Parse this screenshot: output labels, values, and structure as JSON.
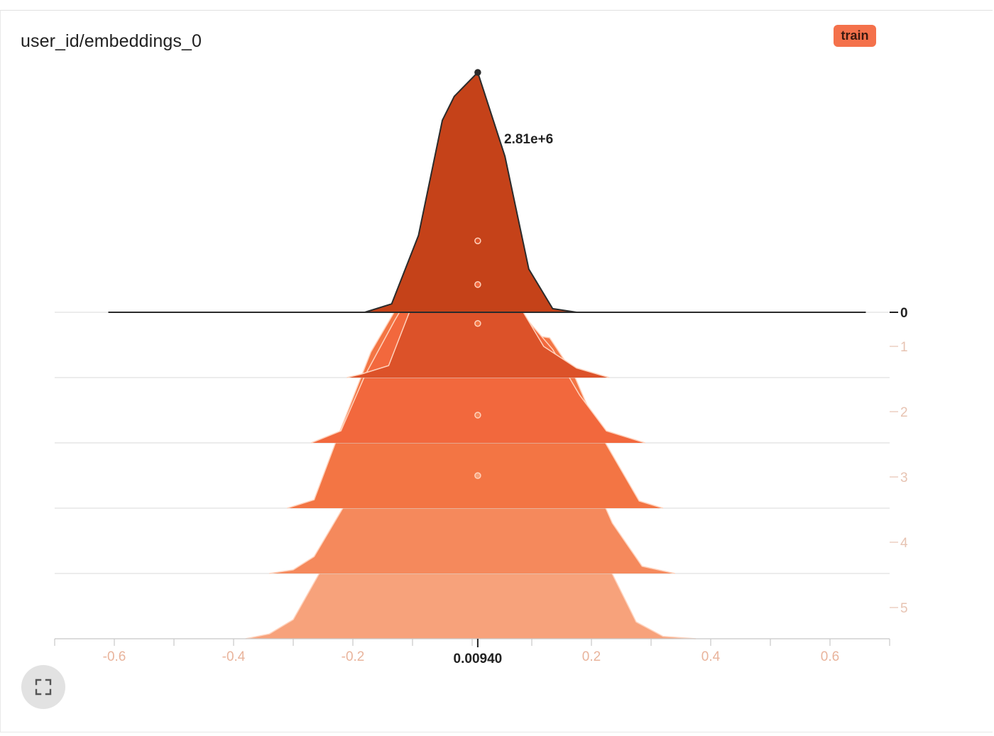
{
  "card": {
    "title": "user_id/embeddings_0",
    "run_label": "train",
    "run_color": "#f4714b",
    "fullscreen_icon": "fullscreen-icon"
  },
  "chart_data": {
    "type": "area",
    "title": "user_id/embeddings_0",
    "xlabel": "",
    "ylabel": "",
    "xlim": [
      -0.7,
      0.7
    ],
    "x_ticks": [
      -0.6,
      -0.4,
      -0.2,
      0.2,
      0.4,
      0.6
    ],
    "x_tick_labels": [
      "-0.6",
      "-0.4",
      "-0.2",
      "0.2",
      "0.4",
      "0.6"
    ],
    "step_ticks": [
      0,
      1,
      2,
      3,
      4,
      5
    ],
    "step_tick_labels": [
      "0",
      "1",
      "2",
      "3",
      "4",
      "5"
    ],
    "hover": {
      "x": 0.0094,
      "x_label": "0.00940",
      "step": 0,
      "value": 2810000,
      "value_label": "2.81e+6"
    },
    "series": [
      {
        "step": 0,
        "color": "#c54219",
        "points": [
          [
            -0.61,
            0
          ],
          [
            -0.18,
            0
          ],
          [
            -0.135,
            0.035
          ],
          [
            -0.09,
            0.32
          ],
          [
            -0.05,
            0.8
          ],
          [
            -0.03,
            0.9
          ],
          [
            0.0094,
            1.0
          ],
          [
            0.055,
            0.65
          ],
          [
            0.095,
            0.18
          ],
          [
            0.135,
            0.015
          ],
          [
            0.175,
            0
          ],
          [
            0.66,
            0
          ]
        ]
      },
      {
        "step": 1,
        "color": "#dc5229",
        "points": [
          [
            -0.21,
            0
          ],
          [
            -0.185,
            0.015
          ],
          [
            -0.14,
            0.05
          ],
          [
            -0.09,
            0.37
          ],
          [
            -0.07,
            0.51
          ],
          [
            -0.03,
            0.58
          ],
          [
            0.0094,
            0.57
          ],
          [
            0.06,
            0.38
          ],
          [
            0.12,
            0.13
          ],
          [
            0.175,
            0.04
          ],
          [
            0.23,
            0
          ]
        ]
      },
      {
        "step": 2,
        "color": "#f2683d",
        "points": [
          [
            -0.27,
            0
          ],
          [
            -0.22,
            0.05
          ],
          [
            -0.18,
            0.28
          ],
          [
            -0.13,
            0.51
          ],
          [
            -0.09,
            0.68
          ],
          [
            -0.045,
            0.71
          ],
          [
            0.0094,
            0.66
          ],
          [
            0.09,
            0.52
          ],
          [
            0.135,
            0.39
          ],
          [
            0.18,
            0.2
          ],
          [
            0.225,
            0.05
          ],
          [
            0.29,
            0
          ]
        ]
      },
      {
        "step": 3,
        "color": "#f37544",
        "points": [
          [
            -0.31,
            0
          ],
          [
            -0.265,
            0.035
          ],
          [
            -0.225,
            0.3
          ],
          [
            -0.17,
            0.65
          ],
          [
            -0.13,
            0.82
          ],
          [
            -0.085,
            0.86
          ],
          [
            0.0094,
            0.77
          ],
          [
            0.05,
            0.74
          ],
          [
            0.13,
            0.71
          ],
          [
            0.17,
            0.56
          ],
          [
            0.21,
            0.33
          ],
          [
            0.28,
            0.03
          ],
          [
            0.32,
            0
          ]
        ]
      },
      {
        "step": 4,
        "color": "#f5895c",
        "points": [
          [
            -0.34,
            0
          ],
          [
            -0.3,
            0.015
          ],
          [
            -0.265,
            0.07
          ],
          [
            -0.215,
            0.28
          ],
          [
            -0.17,
            0.58
          ],
          [
            -0.13,
            0.77
          ],
          [
            -0.085,
            0.74
          ],
          [
            0.0094,
            0.66
          ],
          [
            0.09,
            0.6
          ],
          [
            0.145,
            0.6
          ],
          [
            0.18,
            0.52
          ],
          [
            0.235,
            0.21
          ],
          [
            0.285,
            0.03
          ],
          [
            0.34,
            0
          ]
        ]
      },
      {
        "step": 5,
        "color": "#f7a27b",
        "points": [
          [
            -0.38,
            0
          ],
          [
            -0.34,
            0.02
          ],
          [
            -0.3,
            0.08
          ],
          [
            -0.25,
            0.3
          ],
          [
            -0.18,
            0.8
          ],
          [
            -0.135,
            0.87
          ],
          [
            -0.085,
            0.79
          ],
          [
            0.0094,
            0.68
          ],
          [
            0.085,
            0.62
          ],
          [
            0.13,
            0.63
          ],
          [
            0.18,
            0.6
          ],
          [
            0.225,
            0.32
          ],
          [
            0.275,
            0.07
          ],
          [
            0.32,
            0.01
          ],
          [
            0.375,
            0
          ]
        ]
      }
    ]
  }
}
